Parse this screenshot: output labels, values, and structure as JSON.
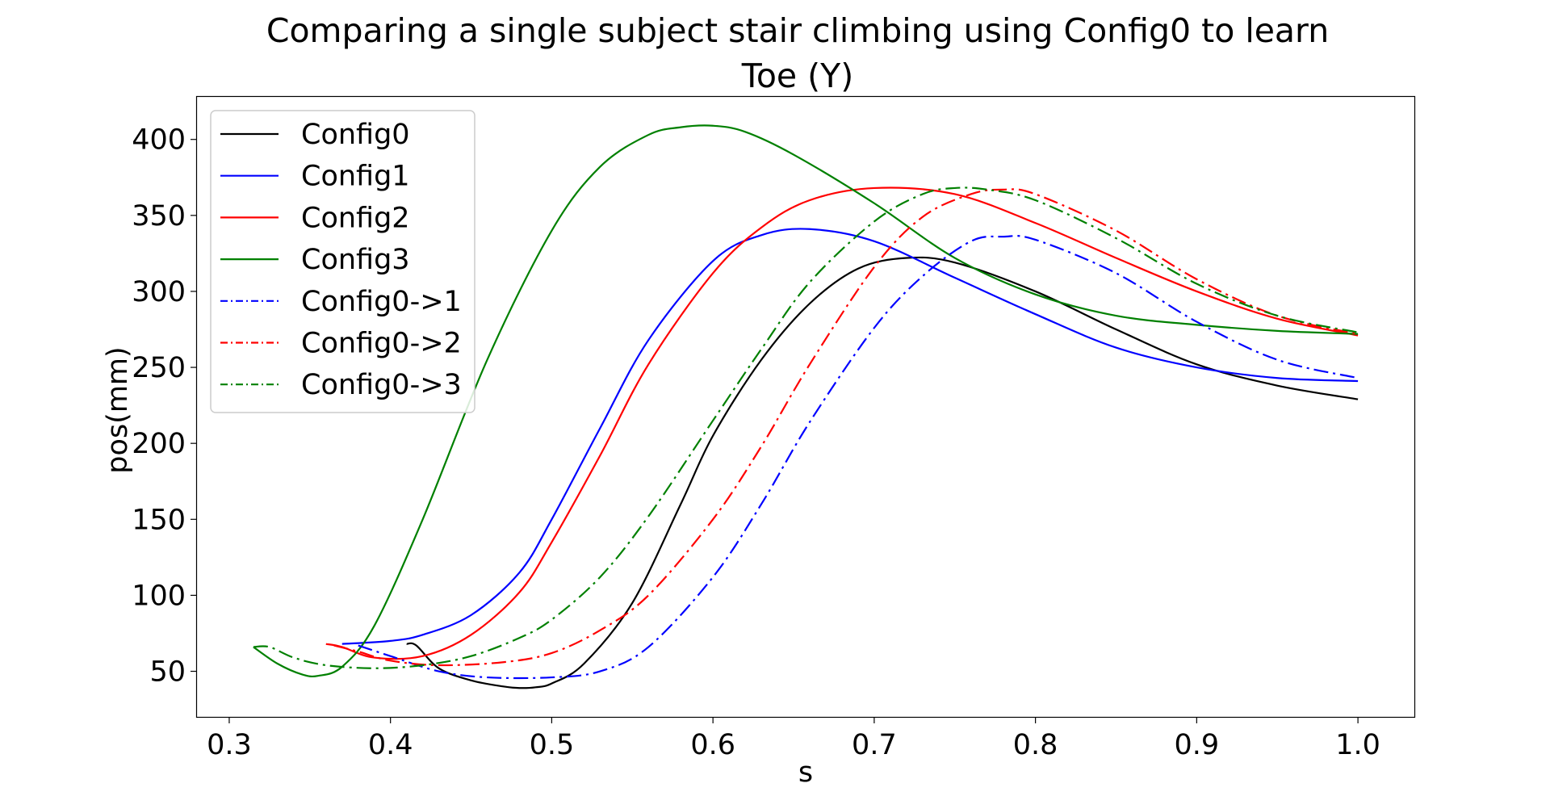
{
  "chart_data": {
    "type": "line",
    "title_lines": [
      "Comparing a single subject stair climbing using Config0 to learn",
      "Toe (Y)"
    ],
    "xlabel": "s",
    "ylabel": "pos(mm)",
    "xlim": [
      0.28,
      1.035
    ],
    "ylim": [
      20,
      428
    ],
    "xticks": [
      0.3,
      0.4,
      0.5,
      0.6,
      0.7,
      0.8,
      0.9,
      1.0
    ],
    "xtick_labels": [
      "0.3",
      "0.4",
      "0.5",
      "0.6",
      "0.7",
      "0.8",
      "0.9",
      "1.0"
    ],
    "yticks": [
      50,
      100,
      150,
      200,
      250,
      300,
      350,
      400
    ],
    "ytick_labels": [
      "50",
      "100",
      "150",
      "200",
      "250",
      "300",
      "350",
      "400"
    ],
    "grid": false,
    "legend_position": "upper-left",
    "series": [
      {
        "name": "Config0",
        "color": "#000000",
        "dash": "solid",
        "x": [
          0.41,
          0.416,
          0.43,
          0.45,
          0.47,
          0.48,
          0.49,
          0.5,
          0.52,
          0.55,
          0.58,
          0.6,
          0.63,
          0.66,
          0.69,
          0.72,
          0.75,
          0.8,
          0.85,
          0.9,
          0.95,
          1.0
        ],
        "y": [
          68,
          67,
          52,
          44,
          40,
          39,
          39.5,
          42,
          55,
          95,
          160,
          205,
          255,
          292,
          315,
          322,
          319,
          300,
          275,
          252,
          238,
          229
        ]
      },
      {
        "name": "Config1",
        "color": "#0000ff",
        "dash": "solid",
        "x": [
          0.37,
          0.4,
          0.42,
          0.45,
          0.48,
          0.5,
          0.53,
          0.56,
          0.6,
          0.63,
          0.66,
          0.7,
          0.75,
          0.8,
          0.85,
          0.9,
          0.95,
          1.0
        ],
        "y": [
          68,
          70,
          74,
          87,
          115,
          150,
          210,
          268,
          320,
          337,
          341,
          333,
          309,
          285,
          263,
          250,
          243,
          241
        ]
      },
      {
        "name": "Config2",
        "color": "#ff0000",
        "dash": "solid",
        "x": [
          0.36,
          0.37,
          0.39,
          0.42,
          0.45,
          0.48,
          0.5,
          0.53,
          0.56,
          0.6,
          0.63,
          0.66,
          0.7,
          0.75,
          0.8,
          0.85,
          0.9,
          0.95,
          1.0
        ],
        "y": [
          68,
          66,
          59,
          60,
          74,
          102,
          135,
          192,
          252,
          312,
          342,
          360,
          368,
          364,
          345,
          322,
          300,
          282,
          271
        ]
      },
      {
        "name": "Config3",
        "color": "#008000",
        "dash": "solid",
        "x": [
          0.315,
          0.33,
          0.345,
          0.355,
          0.37,
          0.39,
          0.42,
          0.46,
          0.5,
          0.53,
          0.56,
          0.58,
          0.6,
          0.62,
          0.65,
          0.7,
          0.75,
          0.8,
          0.85,
          0.9,
          0.95,
          1.0
        ],
        "y": [
          66,
          55,
          48,
          47,
          53,
          80,
          150,
          255,
          340,
          382,
          403,
          408,
          409,
          405,
          390,
          358,
          322,
          298,
          284,
          278,
          274,
          272
        ]
      },
      {
        "name": "Config0->1",
        "color": "#0000ff",
        "dash": "dashdot",
        "x": [
          0.38,
          0.4,
          0.43,
          0.46,
          0.5,
          0.53,
          0.56,
          0.6,
          0.63,
          0.66,
          0.7,
          0.73,
          0.76,
          0.78,
          0.8,
          0.85,
          0.9,
          0.95,
          1.0
        ],
        "y": [
          67,
          60,
          50,
          46,
          46,
          50,
          66,
          112,
          160,
          214,
          276,
          310,
          333,
          336,
          334,
          312,
          280,
          255,
          243
        ]
      },
      {
        "name": "Config0->2",
        "color": "#ff0000",
        "dash": "dashdot",
        "x": [
          0.365,
          0.38,
          0.4,
          0.43,
          0.47,
          0.5,
          0.53,
          0.56,
          0.6,
          0.63,
          0.66,
          0.7,
          0.73,
          0.76,
          0.78,
          0.8,
          0.85,
          0.9,
          0.95,
          1.0
        ],
        "y": [
          67,
          63,
          57,
          54,
          56,
          62,
          77,
          100,
          150,
          198,
          252,
          316,
          349,
          364,
          367,
          364,
          340,
          308,
          284,
          272
        ]
      },
      {
        "name": "Config0->3",
        "color": "#008000",
        "dash": "dashdot",
        "x": [
          0.315,
          0.325,
          0.34,
          0.36,
          0.39,
          0.42,
          0.45,
          0.48,
          0.5,
          0.53,
          0.56,
          0.6,
          0.63,
          0.66,
          0.7,
          0.73,
          0.75,
          0.77,
          0.8,
          0.85,
          0.9,
          0.95,
          1.0
        ],
        "y": [
          66,
          66,
          59,
          54,
          52,
          54,
          60,
          72,
          84,
          112,
          152,
          215,
          262,
          306,
          346,
          364,
          368,
          367,
          360,
          335,
          305,
          284,
          273
        ]
      }
    ]
  }
}
